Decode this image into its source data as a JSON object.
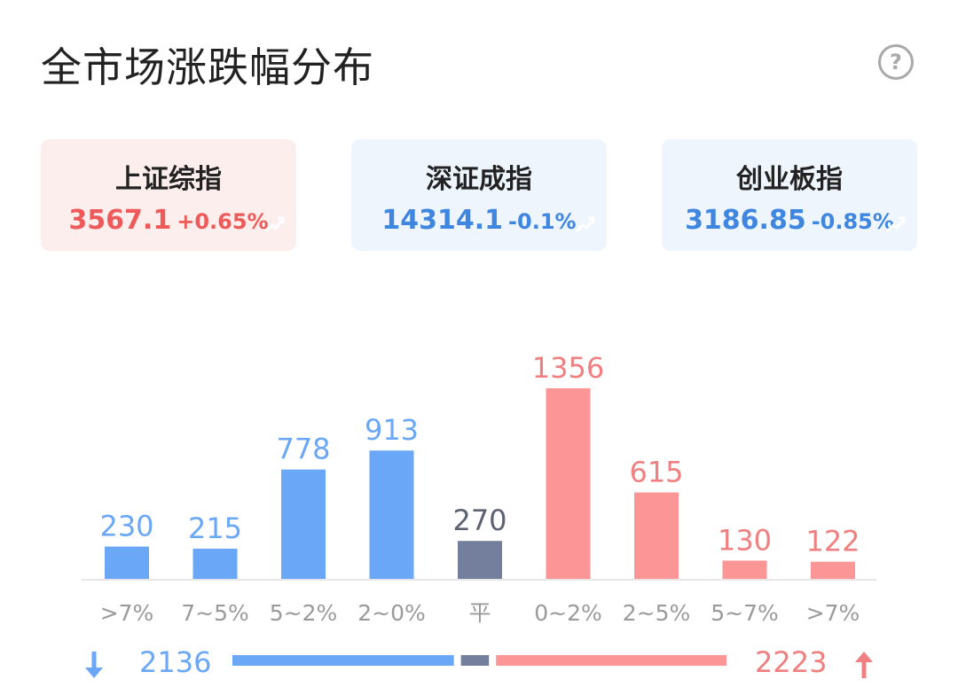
{
  "title": "全市场涨跌幅分布",
  "indices": [
    {
      "name": "上证综指",
      "price": "3567.1",
      "change": "+0.65%",
      "trend": "up"
    },
    {
      "name": "深证成指",
      "price": "14314.1",
      "change": "-0.1%",
      "trend": "down"
    },
    {
      "name": "创业板指",
      "price": "3186.85",
      "change": "-0.85%",
      "trend": "down"
    }
  ],
  "colors": {
    "down": "#6aa8f7",
    "flat": "#737f9c",
    "up": "#fb9596",
    "down_text": "#6aa8f7",
    "flat_text": "#5c6270",
    "up_text": "#f07f80",
    "tick_text": "#9a9a9a"
  },
  "chart_data": {
    "type": "bar",
    "categories": [
      ">7%",
      "7~5%",
      "5~2%",
      "2~0%",
      "平",
      "0~2%",
      "2~5%",
      "5~7%",
      ">7%"
    ],
    "values": [
      230,
      215,
      778,
      913,
      270,
      1356,
      615,
      130,
      122
    ],
    "groups": [
      "down",
      "down",
      "down",
      "down",
      "flat",
      "up",
      "up",
      "up",
      "up"
    ],
    "ylim": [
      0,
      1356
    ]
  },
  "summary": {
    "down_total": "2136",
    "up_total": "2223",
    "flat_total": 270,
    "down_icon": "arrow-down-icon",
    "up_icon": "arrow-up-icon"
  }
}
